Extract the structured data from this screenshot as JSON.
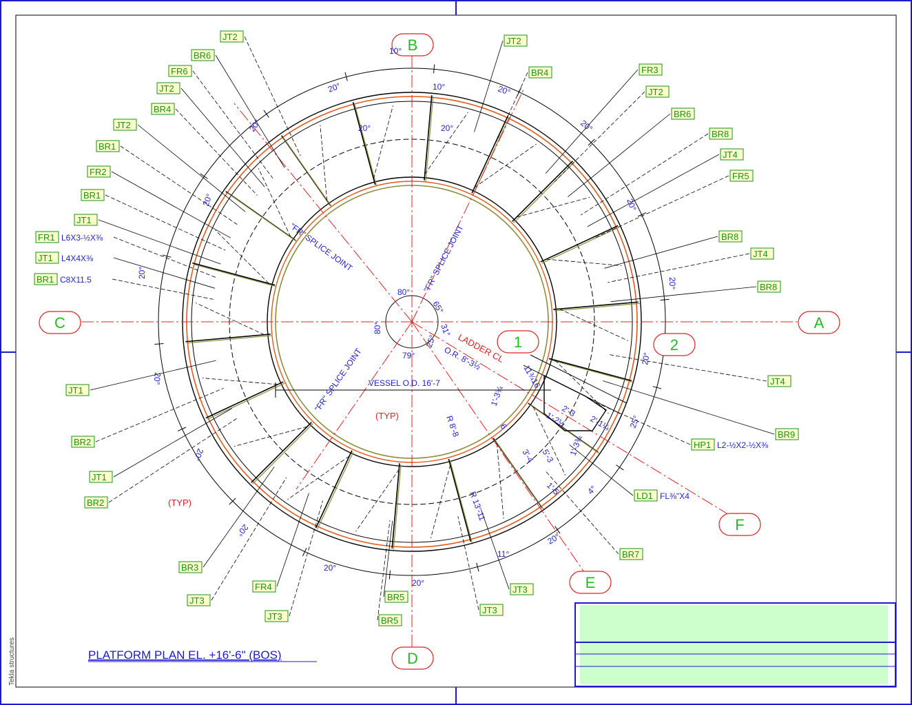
{
  "title": "PLATFORM PLAN EL. +16'-6\" (BOS)",
  "side_label": "Tekla structures",
  "grid_labels": [
    "A",
    "B",
    "C",
    "D",
    "E",
    "F",
    "1",
    "2"
  ],
  "left_tags": [
    {
      "tag": "JT2",
      "text": ""
    },
    {
      "tag": "BR6",
      "text": ""
    },
    {
      "tag": "FR6",
      "text": ""
    },
    {
      "tag": "JT2",
      "text": ""
    },
    {
      "tag": "BR4",
      "text": ""
    },
    {
      "tag": "JT2",
      "text": ""
    },
    {
      "tag": "BR1",
      "text": ""
    },
    {
      "tag": "FR2",
      "text": ""
    },
    {
      "tag": "BR1",
      "text": ""
    },
    {
      "tag": "JT1",
      "text": ""
    },
    {
      "tag": "FR1",
      "text": "L6X3-½X⅜"
    },
    {
      "tag": "JT1",
      "text": "L4X4X⅜"
    },
    {
      "tag": "BR1",
      "text": "C8X11.5"
    },
    {
      "tag": "JT1",
      "text": ""
    },
    {
      "tag": "BR2",
      "text": ""
    },
    {
      "tag": "JT1",
      "text": ""
    },
    {
      "tag": "BR2",
      "text": ""
    },
    {
      "tag": "BR3",
      "text": ""
    },
    {
      "tag": "JT3",
      "text": ""
    },
    {
      "tag": "FR4",
      "text": ""
    },
    {
      "tag": "JT3",
      "text": ""
    }
  ],
  "right_tags": [
    {
      "tag": "JT2",
      "text": ""
    },
    {
      "tag": "BR4",
      "text": ""
    },
    {
      "tag": "FR3",
      "text": ""
    },
    {
      "tag": "JT2",
      "text": ""
    },
    {
      "tag": "BR6",
      "text": ""
    },
    {
      "tag": "BR8",
      "text": ""
    },
    {
      "tag": "JT4",
      "text": ""
    },
    {
      "tag": "FR5",
      "text": ""
    },
    {
      "tag": "BR8",
      "text": ""
    },
    {
      "tag": "JT4",
      "text": ""
    },
    {
      "tag": "BR8",
      "text": ""
    },
    {
      "tag": "JT4",
      "text": ""
    },
    {
      "tag": "BR9",
      "text": ""
    },
    {
      "tag": "HP1",
      "text": "L2-½X2-½X⅜"
    },
    {
      "tag": "LD1",
      "text": "FL⅜\"X4"
    },
    {
      "tag": "BR7",
      "text": ""
    },
    {
      "tag": "JT3",
      "text": ""
    },
    {
      "tag": "JT3",
      "text": ""
    },
    {
      "tag": "BR5",
      "text": ""
    },
    {
      "tag": "BR5",
      "text": ""
    }
  ],
  "angle_labels": [
    "10°",
    "20°",
    "10°",
    "20°",
    "20°",
    "20°",
    "20°",
    "20°",
    "20°",
    "20°",
    "20°",
    "20°",
    "20°",
    "20°",
    "20°",
    "11°",
    "25°",
    "4°",
    "20°",
    "20°",
    "20°",
    "20°"
  ],
  "center_angles": [
    "80°",
    "65°",
    "80°",
    "31°",
    "79°",
    "25°"
  ],
  "notes": {
    "splice_1": "\"FR\" SPLICE JOINT",
    "splice_2": "\"FR\" SPLICE JOINT",
    "splice_3": "\"FR\" SPLICE JOINT",
    "ladder": "LADDER CL",
    "or_dim": "O.R. 8'-3½",
    "vessel": "VESSEL O.D. 16'-7",
    "r1": "R 8'-8",
    "r2": "R 13'-11",
    "typ": "(TYP)",
    "d1": "11¾16",
    "d2": "1'-3¾",
    "d3": "2'-3",
    "d4": "1'-2½",
    "d5": "2'-1¼",
    "d6": "1'-3¾",
    "d7": "6",
    "d8": "3'-4",
    "d9": "5'-3",
    "d10": "1'-5"
  },
  "colors": {
    "tag_border": "#1a8f1a",
    "tag_fill": "#ffffcc",
    "grid_text": "#22bb22",
    "red": "#e02020",
    "blue": "#1a1acc",
    "olive": "#8b8b3a",
    "orange": "#e05a1a",
    "title_block_fill": "#ccffcc"
  }
}
